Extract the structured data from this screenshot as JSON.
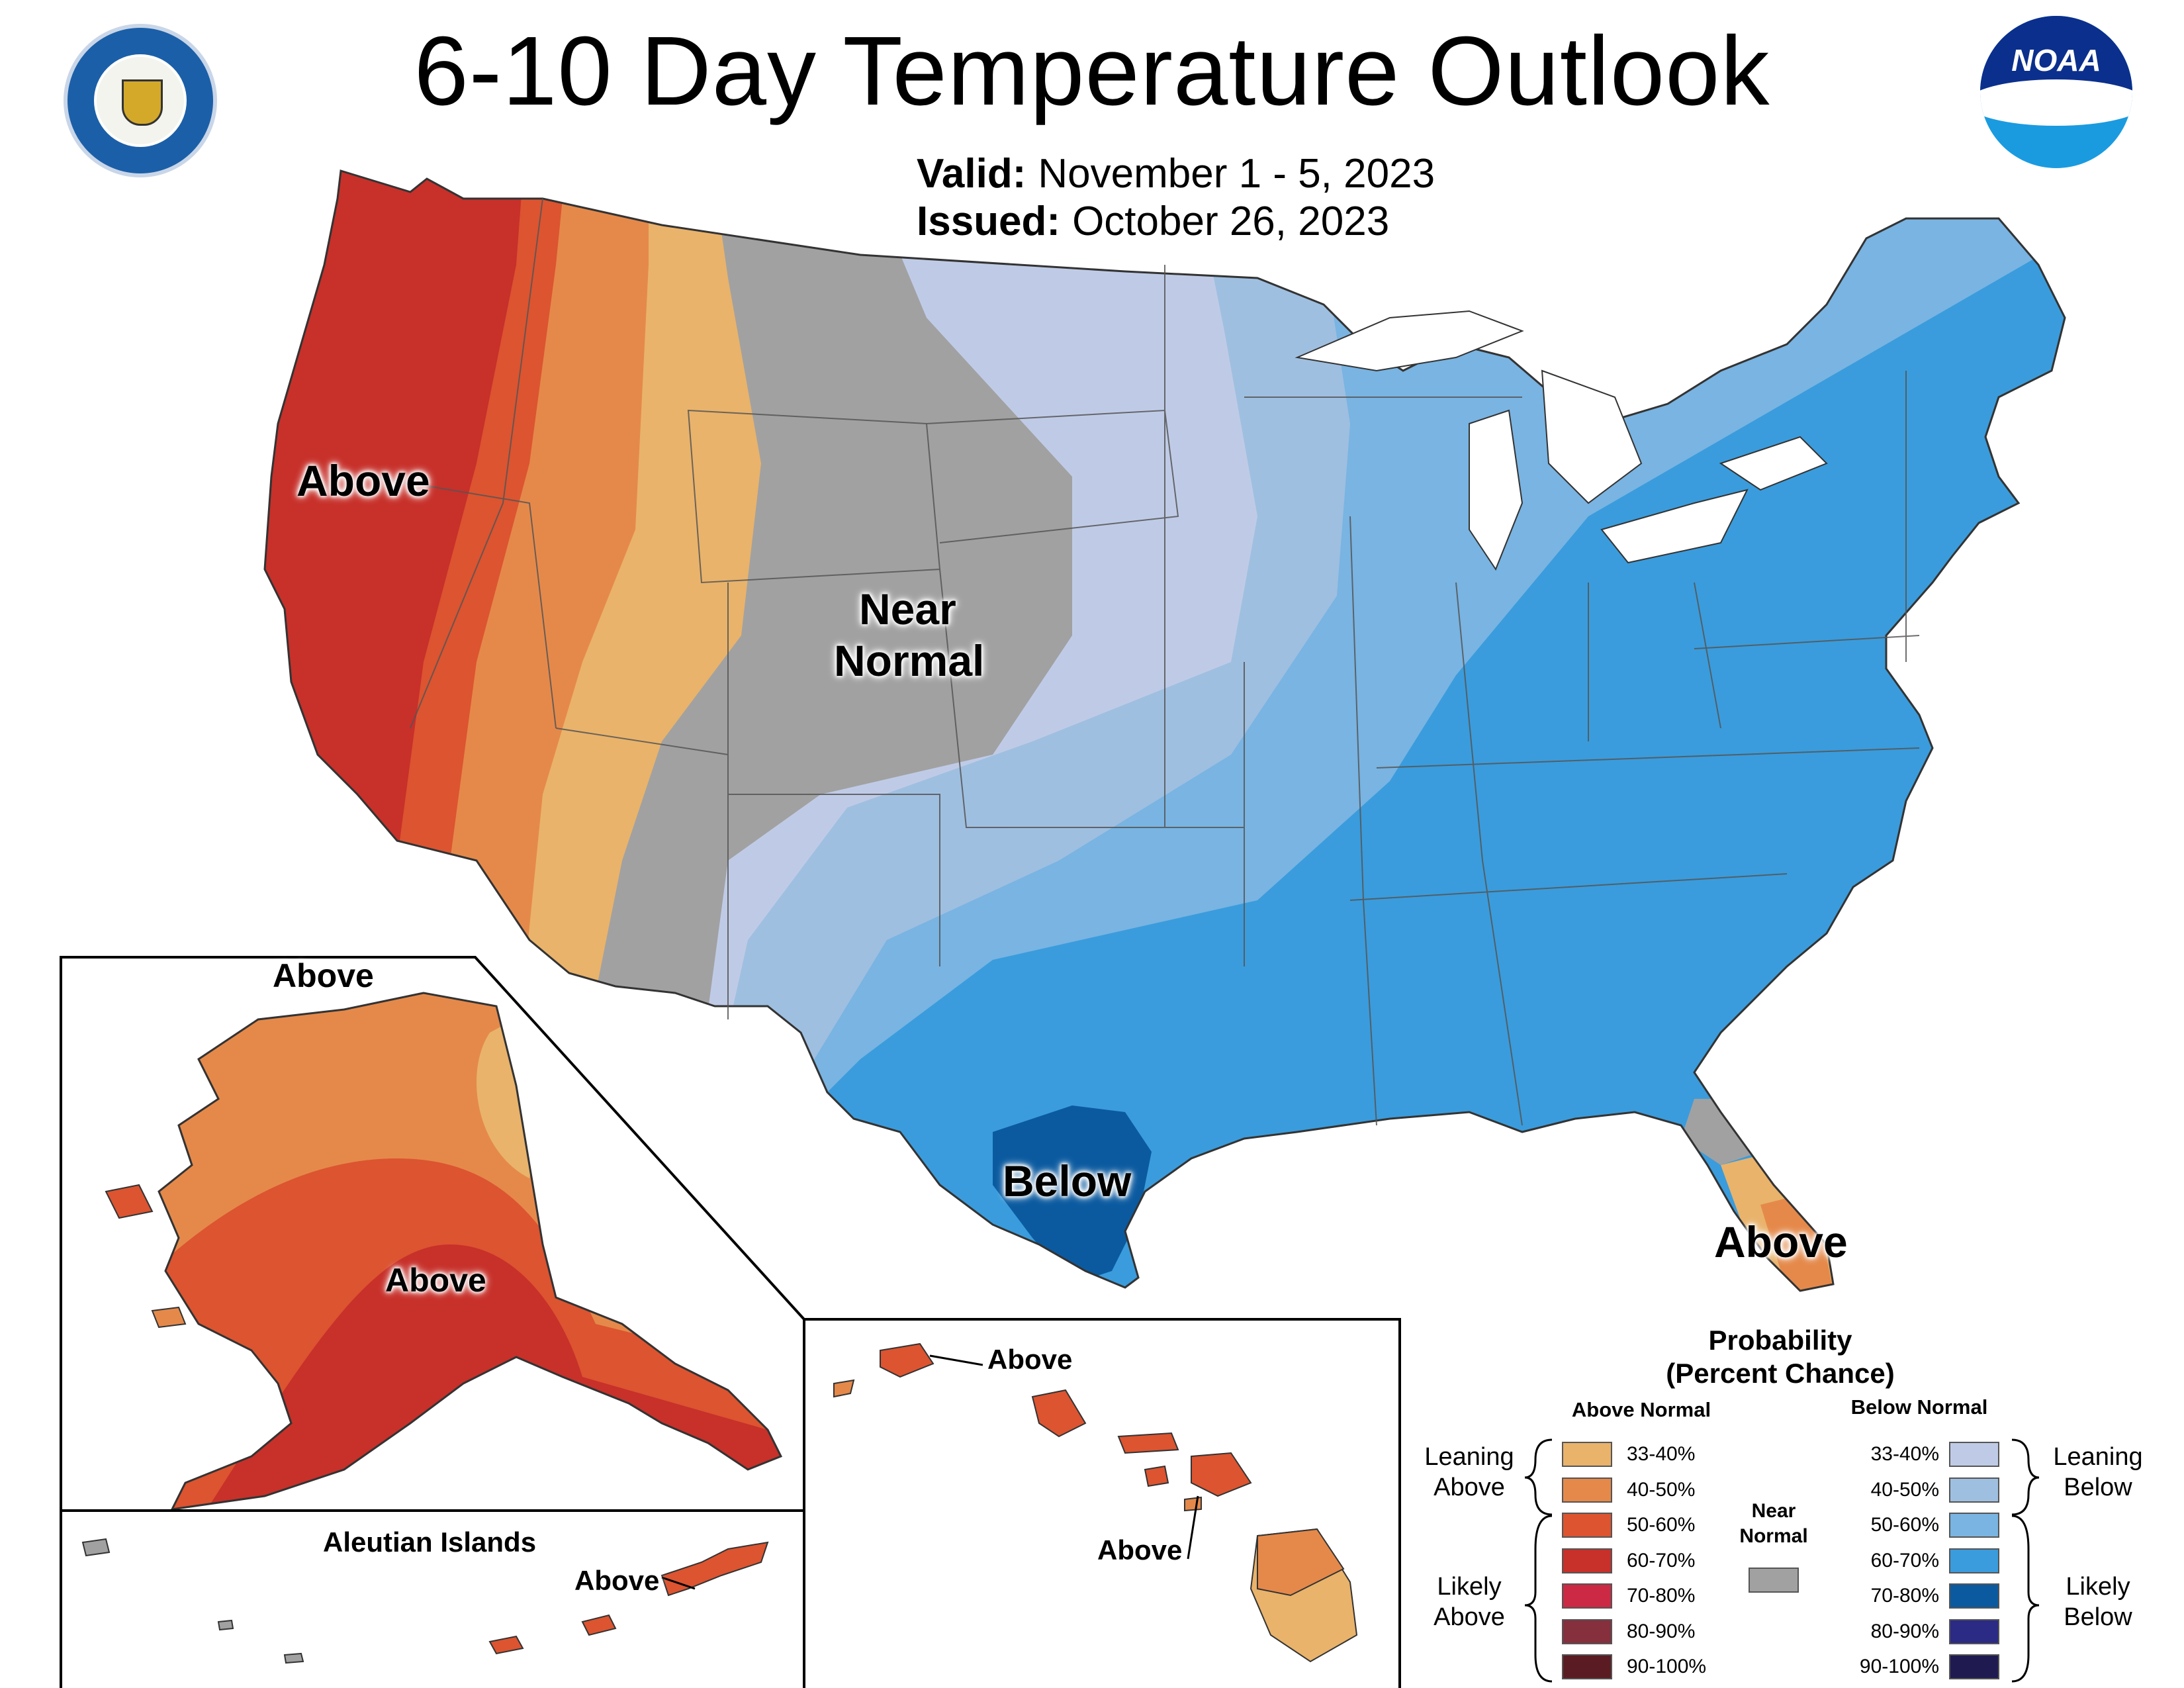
{
  "title": "6-10 Day Temperature Outlook",
  "valid": {
    "label": "Valid:",
    "value": "November 1 - 5, 2023"
  },
  "issued": {
    "label": "Issued:",
    "value": "October 26, 2023"
  },
  "logos": {
    "left": "department-of-commerce-seal",
    "right": "noaa-logo",
    "noaa_text": "NOAA"
  },
  "map_labels": {
    "west": "Above",
    "center_line1": "Near",
    "center_line2": "Normal",
    "texas": "Below",
    "florida": "Above",
    "alaska_north": "Above",
    "alaska_south": "Above",
    "aleutian_title": "Aleutian Islands",
    "aleutian": "Above",
    "hawaii_top": "Above",
    "hawaii_bottom": "Above"
  },
  "legend": {
    "title_line1": "Probability",
    "title_line2": "(Percent Chance)",
    "above_header": "Above Normal",
    "below_header": "Below Normal",
    "near_line1": "Near",
    "near_line2": "Normal",
    "leaning_above_1": "Leaning",
    "leaning_above_2": "Above",
    "likely_above_1": "Likely",
    "likely_above_2": "Above",
    "leaning_below_1": "Leaning",
    "leaning_below_2": "Below",
    "likely_below_1": "Likely",
    "likely_below_2": "Below",
    "above": [
      {
        "range": "33-40%",
        "color": "#e9b36b"
      },
      {
        "range": "40-50%",
        "color": "#e5894a"
      },
      {
        "range": "50-60%",
        "color": "#dc5430"
      },
      {
        "range": "60-70%",
        "color": "#c8302a"
      },
      {
        "range": "70-80%",
        "color": "#cc2944"
      },
      {
        "range": "80-90%",
        "color": "#862f3d"
      },
      {
        "range": "90-100%",
        "color": "#5a1c22"
      }
    ],
    "below": [
      {
        "range": "33-40%",
        "color": "#bfcbe6"
      },
      {
        "range": "40-50%",
        "color": "#9fbfe0"
      },
      {
        "range": "50-60%",
        "color": "#79b4e2"
      },
      {
        "range": "60-70%",
        "color": "#3a9cdc"
      },
      {
        "range": "70-80%",
        "color": "#0b5aa0"
      },
      {
        "range": "80-90%",
        "color": "#2b2a85"
      },
      {
        "range": "90-100%",
        "color": "#1f1b50"
      }
    ],
    "near_color": "#a1a1a1"
  }
}
